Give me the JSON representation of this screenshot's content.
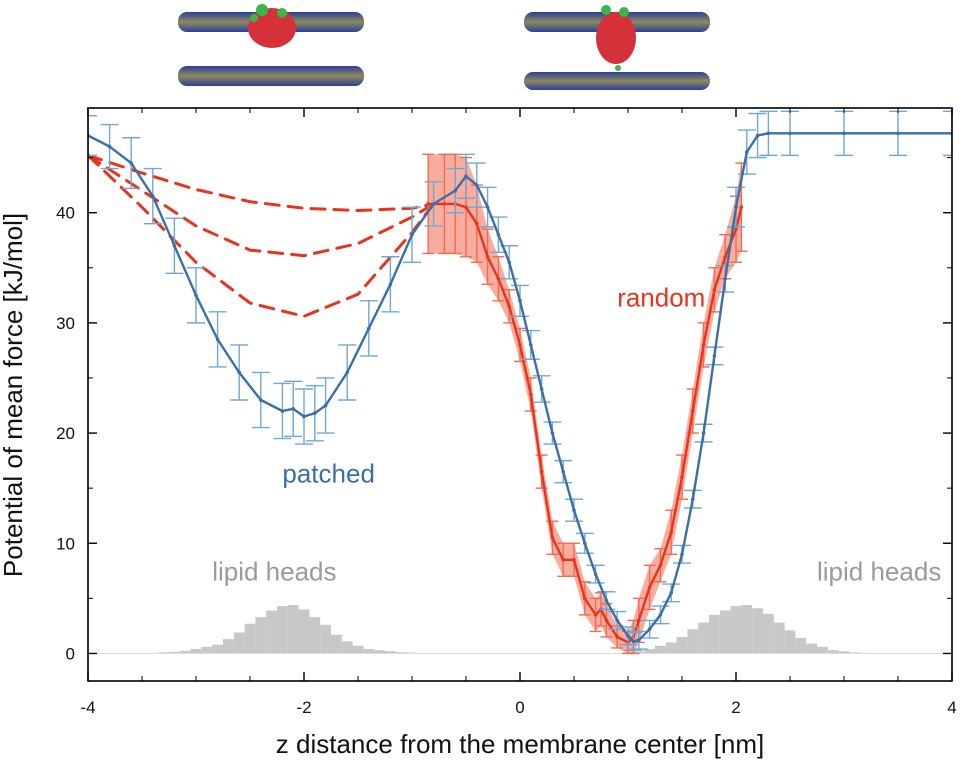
{
  "chart_data": {
    "type": "line",
    "title": "",
    "xlabel": "z distance from the membrane center [nm]",
    "ylabel": "Potential of mean force [kJ/mol]",
    "xlim": [
      -4,
      4
    ],
    "ylim": [
      -2.5,
      49.5
    ],
    "xticks": [
      -4,
      -2,
      0,
      2,
      4
    ],
    "xtick_labels": [
      "-4",
      "-2",
      "0",
      "2",
      "4"
    ],
    "yticks": [
      0,
      10,
      20,
      30,
      40
    ],
    "ytick_labels": [
      "0",
      "10",
      "20",
      "30",
      "40"
    ],
    "grid": false,
    "legend": "none",
    "annotations": {
      "patched": {
        "text": "patched",
        "x": -2.2,
        "y": 15.5,
        "color": "#3a6fa8"
      },
      "random": {
        "text": "random",
        "x": 0.9,
        "y": 31.5,
        "color": "#e8341c"
      },
      "lipid_heads_left": {
        "text": "lipid heads",
        "x": -2.85,
        "y": 6.6,
        "color": "#9a9a9a"
      },
      "lipid_heads_right": {
        "text": "lipid heads",
        "x": 2.75,
        "y": 6.6,
        "color": "#9a9a9a"
      }
    },
    "series": [
      {
        "name": "patched",
        "color": "#3a6fa8",
        "error_color": "#6fa8d6",
        "x": [
          -4.0,
          -3.8,
          -3.6,
          -3.4,
          -3.2,
          -3.0,
          -2.8,
          -2.6,
          -2.4,
          -2.2,
          -2.1,
          -2.0,
          -1.9,
          -1.8,
          -1.6,
          -1.4,
          -1.2,
          -1.0,
          -0.8,
          -0.6,
          -0.5,
          -0.4,
          -0.3,
          -0.2,
          -0.1,
          0.0,
          0.1,
          0.2,
          0.3,
          0.4,
          0.5,
          0.6,
          0.7,
          0.8,
          0.9,
          1.0,
          1.05,
          1.1,
          1.2,
          1.3,
          1.4,
          1.5,
          1.6,
          1.7,
          1.8,
          1.9,
          2.0,
          2.1,
          2.2,
          2.3,
          2.5,
          3.0,
          3.5,
          4.0
        ],
        "y": [
          47.0,
          46.0,
          44.5,
          41.5,
          37.0,
          32.5,
          28.5,
          25.5,
          23.0,
          22.0,
          22.2,
          21.5,
          21.8,
          22.5,
          25.5,
          29.5,
          33.5,
          38.0,
          40.8,
          42.0,
          43.3,
          42.5,
          40.5,
          38.0,
          35.5,
          32.0,
          28.0,
          24.0,
          20.0,
          16.5,
          13.0,
          10.0,
          7.2,
          4.8,
          3.0,
          1.6,
          1.1,
          1.2,
          2.2,
          3.5,
          5.5,
          9.0,
          14.0,
          20.0,
          27.0,
          34.0,
          40.5,
          45.5,
          47.0,
          47.2,
          47.2,
          47.2,
          47.2,
          47.2
        ],
        "err": [
          1.8,
          2.0,
          2.3,
          2.5,
          2.5,
          2.5,
          2.5,
          2.5,
          2.5,
          2.5,
          2.5,
          2.5,
          2.5,
          2.5,
          2.5,
          2.5,
          2.5,
          2.5,
          2.0,
          2.0,
          2.0,
          2.0,
          1.8,
          1.6,
          1.5,
          1.4,
          1.3,
          1.2,
          1.0,
          1.0,
          1.0,
          0.9,
          0.8,
          0.8,
          0.8,
          0.8,
          0.8,
          0.8,
          0.8,
          0.8,
          0.8,
          0.8,
          0.8,
          0.8,
          0.8,
          1.2,
          1.8,
          2.0,
          2.0,
          2.0,
          2.0,
          2.0,
          2.0,
          2.0
        ]
      },
      {
        "name": "random",
        "color": "#e8341c",
        "error_color": "#f36a4f",
        "x": [
          -0.85,
          -0.7,
          -0.6,
          -0.5,
          -0.4,
          -0.3,
          -0.2,
          -0.1,
          0.0,
          0.1,
          0.2,
          0.3,
          0.4,
          0.5,
          0.6,
          0.7,
          0.75,
          0.8,
          0.9,
          1.0,
          1.05,
          1.1,
          1.2,
          1.3,
          1.4,
          1.5,
          1.6,
          1.7,
          1.8,
          1.9,
          2.0,
          2.05
        ],
        "y": [
          40.8,
          40.8,
          40.8,
          40.5,
          39.0,
          36.0,
          34.0,
          31.5,
          28.0,
          23.5,
          16.5,
          10.5,
          8.5,
          8.5,
          5.0,
          3.5,
          4.0,
          3.0,
          1.5,
          1.0,
          1.5,
          3.0,
          6.0,
          8.0,
          11.0,
          16.0,
          22.0,
          28.0,
          33.0,
          36.0,
          38.5,
          40.5
        ],
        "err": [
          4.5,
          4.5,
          4.5,
          4.5,
          3.5,
          2.5,
          2.0,
          1.5,
          1.5,
          1.5,
          1.5,
          1.5,
          1.5,
          1.5,
          1.5,
          1.5,
          1.5,
          1.5,
          1.0,
          1.0,
          1.5,
          2.0,
          2.0,
          1.5,
          2.0,
          2.0,
          2.0,
          2.0,
          2.0,
          2.0,
          3.0,
          4.0
        ]
      },
      {
        "name": "",
        "color": "#e8341c",
        "style": "dashed",
        "x": [
          -4.0,
          -3.5,
          -3.0,
          -2.5,
          -2.0,
          -1.5,
          -1.0,
          -0.8
        ],
        "y": [
          45.2,
          43.6,
          42.1,
          41.0,
          40.4,
          40.2,
          40.4,
          40.8
        ]
      },
      {
        "name": "",
        "color": "#e8341c",
        "style": "dashed",
        "x": [
          -4.0,
          -3.5,
          -3.0,
          -2.5,
          -2.0,
          -1.5,
          -1.0,
          -0.8
        ],
        "y": [
          45.2,
          42.0,
          38.8,
          36.6,
          36.1,
          37.2,
          39.6,
          40.8
        ]
      },
      {
        "name": "",
        "color": "#e8341c",
        "style": "dashed",
        "x": [
          -4.0,
          -3.5,
          -3.0,
          -2.5,
          -2.0,
          -1.5,
          -1.0,
          -0.8
        ],
        "y": [
          45.2,
          40.5,
          35.5,
          31.8,
          30.6,
          32.6,
          38.2,
          40.8
        ]
      }
    ],
    "histograms": [
      {
        "name": "",
        "color": "#c8c8c8",
        "bin_width": 0.1,
        "centers": [
          -3.4,
          -3.3,
          -3.2,
          -3.1,
          -3.0,
          -2.9,
          -2.8,
          -2.7,
          -2.6,
          -2.5,
          -2.4,
          -2.3,
          -2.2,
          -2.1,
          -2.0,
          -1.9,
          -1.8,
          -1.7,
          -1.6,
          -1.5,
          -1.4,
          -1.3,
          -1.2,
          -1.1,
          -1.0,
          -0.9
        ],
        "values": [
          0.05,
          0.1,
          0.15,
          0.25,
          0.4,
          0.6,
          0.8,
          1.3,
          1.9,
          2.7,
          3.3,
          3.9,
          4.3,
          4.4,
          4.0,
          3.3,
          2.6,
          1.7,
          1.1,
          0.7,
          0.4,
          0.3,
          0.2,
          0.12,
          0.08,
          0.04
        ]
      },
      {
        "name": "",
        "color": "#c8c8c8",
        "bin_width": 0.1,
        "centers": [
          1.1,
          1.2,
          1.3,
          1.4,
          1.5,
          1.6,
          1.7,
          1.8,
          1.9,
          2.0,
          2.1,
          2.2,
          2.3,
          2.4,
          2.5,
          2.6,
          2.7,
          2.8,
          2.9,
          3.0,
          3.1,
          3.2
        ],
        "values": [
          0.2,
          0.4,
          0.7,
          1.0,
          1.5,
          2.2,
          2.8,
          3.5,
          3.9,
          4.3,
          4.4,
          4.1,
          3.6,
          2.8,
          2.1,
          1.4,
          0.9,
          0.6,
          0.3,
          0.2,
          0.1,
          0.05
        ]
      }
    ]
  }
}
